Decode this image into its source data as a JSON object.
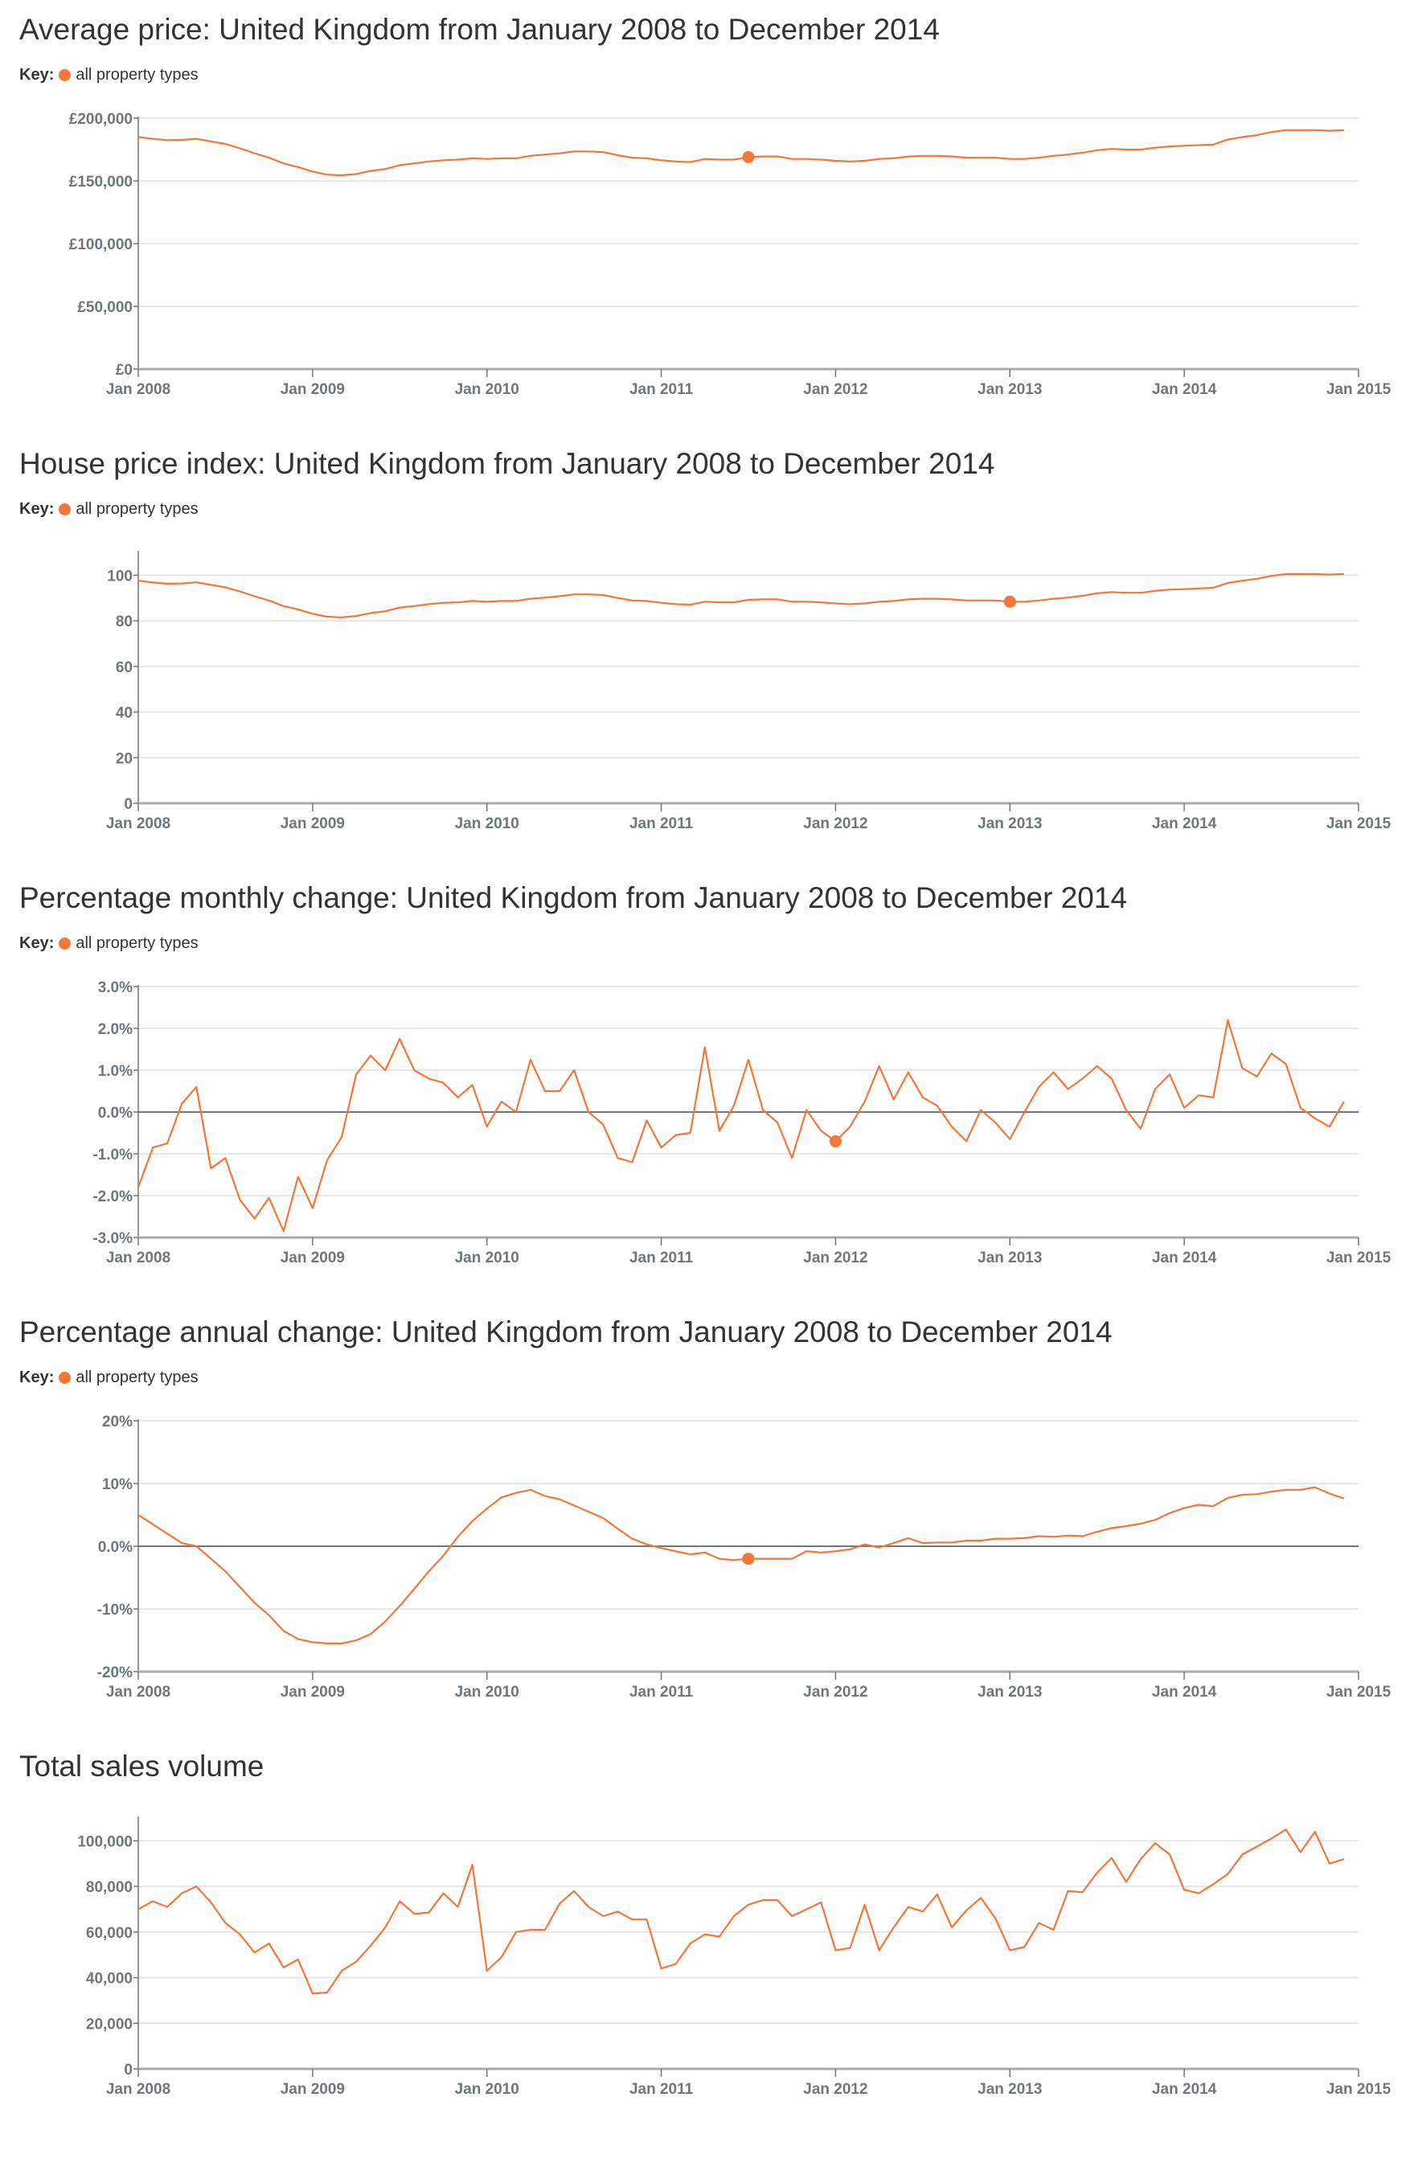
{
  "colors": {
    "series": "#f47738",
    "grid": "#e1e1e1",
    "axis": "#6f777b",
    "text": "#333333"
  },
  "key_label": "Key:",
  "series_name": "all property types",
  "x_ticks": [
    "Jan 2008",
    "Jan 2009",
    "Jan 2010",
    "Jan 2011",
    "Jan 2012",
    "Jan 2013",
    "Jan 2014",
    "Jan 2015"
  ],
  "chart_data": [
    {
      "type": "line",
      "title": "Average price: United Kingdom from January 2008 to December 2014",
      "has_key": true,
      "x_range": [
        "2008-01",
        "2015-01"
      ],
      "ylim": [
        0,
        200000
      ],
      "grid": true,
      "zero_line": false,
      "y_ticks": [
        {
          "v": 0,
          "l": "£0"
        },
        {
          "v": 50000,
          "l": "£50,000"
        },
        {
          "v": 100000,
          "l": "£100,000"
        },
        {
          "v": 150000,
          "l": "£150,000"
        },
        {
          "v": 200000,
          "l": "£200,000"
        }
      ],
      "highlight": "2011-07",
      "start": "2008-01",
      "values": [
        185000,
        183500,
        182500,
        182700,
        183600,
        181500,
        179500,
        176000,
        172000,
        168500,
        164000,
        161000,
        157500,
        155000,
        154500,
        155500,
        158000,
        159500,
        162500,
        164000,
        165500,
        166500,
        167000,
        168000,
        167500,
        168000,
        168000,
        170000,
        171000,
        172000,
        173500,
        173500,
        173000,
        170500,
        168500,
        168000,
        166500,
        165500,
        165000,
        167500,
        167000,
        167000,
        169000,
        169500,
        169500,
        167500,
        167500,
        167000,
        166000,
        165500,
        166000,
        167500,
        168000,
        169500,
        170000,
        170000,
        169500,
        168500,
        168500,
        168500,
        167500,
        167500,
        168500,
        170000,
        171000,
        172500,
        174500,
        175500,
        175000,
        175000,
        176500,
        177500,
        178000,
        178500,
        179000,
        183000,
        185000,
        186500,
        189000,
        190500,
        190500,
        190500,
        190000,
        190500
      ]
    },
    {
      "type": "line",
      "title": "House price index: United Kingdom from January 2008 to December 2014",
      "has_key": true,
      "x_range": [
        "2008-01",
        "2015-01"
      ],
      "ylim": [
        0,
        110
      ],
      "grid": true,
      "zero_line": false,
      "y_ticks": [
        {
          "v": 0,
          "l": "0"
        },
        {
          "v": 20,
          "l": "20"
        },
        {
          "v": 40,
          "l": "40"
        },
        {
          "v": 60,
          "l": "60"
        },
        {
          "v": 80,
          "l": "80"
        },
        {
          "v": 100,
          "l": "100"
        }
      ],
      "highlight": "2013-01",
      "start": "2008-01",
      "values": [
        97.6,
        96.8,
        96.3,
        96.4,
        96.9,
        95.8,
        94.7,
        92.9,
        90.8,
        88.9,
        86.5,
        85.0,
        83.1,
        81.8,
        81.5,
        82.1,
        83.4,
        84.2,
        85.8,
        86.5,
        87.3,
        87.9,
        88.1,
        88.7,
        88.4,
        88.7,
        88.7,
        89.7,
        90.2,
        90.8,
        91.6,
        91.6,
        91.3,
        90.0,
        88.9,
        88.7,
        87.9,
        87.3,
        87.1,
        88.4,
        88.1,
        88.1,
        89.2,
        89.4,
        89.4,
        88.4,
        88.4,
        88.1,
        87.6,
        87.3,
        87.6,
        88.4,
        88.7,
        89.4,
        89.7,
        89.7,
        89.4,
        88.9,
        88.9,
        88.9,
        88.4,
        88.4,
        88.9,
        89.7,
        90.2,
        91.0,
        92.1,
        92.6,
        92.3,
        92.3,
        93.1,
        93.7,
        93.9,
        94.2,
        94.5,
        96.6,
        97.6,
        98.4,
        99.7,
        100.5,
        100.5,
        100.5,
        100.3,
        100.5
      ]
    },
    {
      "type": "line",
      "title": "Percentage monthly change: United Kingdom from January 2008 to December 2014",
      "has_key": true,
      "x_range": [
        "2008-01",
        "2015-01"
      ],
      "ylim": [
        -3,
        3
      ],
      "grid": true,
      "zero_line": true,
      "y_ticks": [
        {
          "v": -3,
          "l": "-3.0%"
        },
        {
          "v": -2,
          "l": "-2.0%"
        },
        {
          "v": -1,
          "l": "-1.0%"
        },
        {
          "v": 0,
          "l": "0.0%"
        },
        {
          "v": 1,
          "l": "1.0%"
        },
        {
          "v": 2,
          "l": "2.0%"
        },
        {
          "v": 3,
          "l": "3.0%"
        }
      ],
      "highlight": "2012-01",
      "start": "2008-01",
      "values": [
        -1.8,
        -0.85,
        -0.75,
        0.2,
        0.6,
        -1.35,
        -1.1,
        -2.1,
        -2.55,
        -2.05,
        -2.85,
        -1.55,
        -2.3,
        -1.15,
        -0.6,
        0.9,
        1.35,
        1.0,
        1.75,
        1.0,
        0.8,
        0.7,
        0.35,
        0.65,
        -0.35,
        0.25,
        0.0,
        1.25,
        0.5,
        0.5,
        1.0,
        0.0,
        -0.3,
        -1.1,
        -1.2,
        -0.2,
        -0.85,
        -0.55,
        -0.5,
        1.55,
        -0.45,
        0.15,
        1.25,
        0.05,
        -0.25,
        -1.1,
        0.05,
        -0.45,
        -0.7,
        -0.35,
        0.25,
        1.1,
        0.3,
        0.95,
        0.35,
        0.15,
        -0.35,
        -0.7,
        0.05,
        -0.25,
        -0.65,
        0.0,
        0.6,
        0.95,
        0.55,
        0.8,
        1.1,
        0.8,
        0.05,
        -0.4,
        0.55,
        0.9,
        0.1,
        0.4,
        0.35,
        2.2,
        1.05,
        0.85,
        1.4,
        1.15,
        0.1,
        -0.15,
        -0.35,
        0.25
      ]
    },
    {
      "type": "line",
      "title": "Percentage annual change: United Kingdom from January 2008 to December 2014",
      "has_key": true,
      "x_range": [
        "2008-01",
        "2015-01"
      ],
      "ylim": [
        -20,
        20
      ],
      "grid": true,
      "zero_line": true,
      "y_ticks": [
        {
          "v": -20,
          "l": "-20%"
        },
        {
          "v": -10,
          "l": "-10%"
        },
        {
          "v": 0,
          "l": "0.0%"
        },
        {
          "v": 10,
          "l": "10%"
        },
        {
          "v": 20,
          "l": "20%"
        }
      ],
      "highlight": "2011-07",
      "start": "2008-01",
      "values": [
        5.0,
        3.5,
        2.0,
        0.5,
        0.0,
        -2.0,
        -4.0,
        -6.5,
        -9.0,
        -11.0,
        -13.5,
        -14.8,
        -15.3,
        -15.5,
        -15.5,
        -15.0,
        -14.0,
        -12.0,
        -9.5,
        -6.8,
        -4.0,
        -1.5,
        1.5,
        4.0,
        6.0,
        7.8,
        8.5,
        9.0,
        8.0,
        7.5,
        6.5,
        5.5,
        4.5,
        2.8,
        1.2,
        0.3,
        -0.3,
        -0.8,
        -1.3,
        -1.0,
        -2.0,
        -2.2,
        -2.0,
        -2.0,
        -2.0,
        -2.0,
        -0.8,
        -1.0,
        -0.8,
        -0.5,
        0.3,
        -0.2,
        0.5,
        1.3,
        0.5,
        0.6,
        0.6,
        0.9,
        0.9,
        1.2,
        1.2,
        1.3,
        1.6,
        1.5,
        1.7,
        1.6,
        2.3,
        2.9,
        3.2,
        3.6,
        4.2,
        5.3,
        6.1,
        6.6,
        6.4,
        7.7,
        8.2,
        8.3,
        8.7,
        9.0,
        9.0,
        9.4,
        8.4,
        7.6
      ]
    },
    {
      "type": "line",
      "title": "Total sales volume",
      "has_key": false,
      "x_range": [
        "2008-01",
        "2015-01"
      ],
      "ylim": [
        0,
        110000
      ],
      "grid": true,
      "zero_line": false,
      "y_ticks": [
        {
          "v": 0,
          "l": "0"
        },
        {
          "v": 20000,
          "l": "20,000"
        },
        {
          "v": 40000,
          "l": "40,000"
        },
        {
          "v": 60000,
          "l": "60,000"
        },
        {
          "v": 80000,
          "l": "80,000"
        },
        {
          "v": 100000,
          "l": "100,000"
        }
      ],
      "highlight": null,
      "start": "2008-01",
      "values": [
        70000,
        73500,
        71000,
        77000,
        80000,
        73000,
        64000,
        59000,
        51000,
        55000,
        44500,
        48000,
        33000,
        33500,
        43000,
        47000,
        54000,
        62000,
        73500,
        68000,
        68500,
        77000,
        71000,
        89500,
        43000,
        49000,
        60000,
        61000,
        61000,
        72500,
        78000,
        71000,
        67000,
        69000,
        65500,
        65500,
        44000,
        46000,
        55000,
        59000,
        58000,
        67000,
        72000,
        74000,
        74000,
        67000,
        70000,
        73000,
        52000,
        53000,
        72000,
        52000,
        62000,
        71000,
        69000,
        76500,
        62000,
        69500,
        75000,
        66000,
        52000,
        53500,
        64000,
        61000,
        78000,
        77500,
        86000,
        92500,
        82000,
        92000,
        99000,
        94000,
        78500,
        77000,
        81000,
        85500,
        94000,
        97500,
        101000,
        105000,
        95000,
        104000,
        90000,
        92000
      ]
    }
  ]
}
